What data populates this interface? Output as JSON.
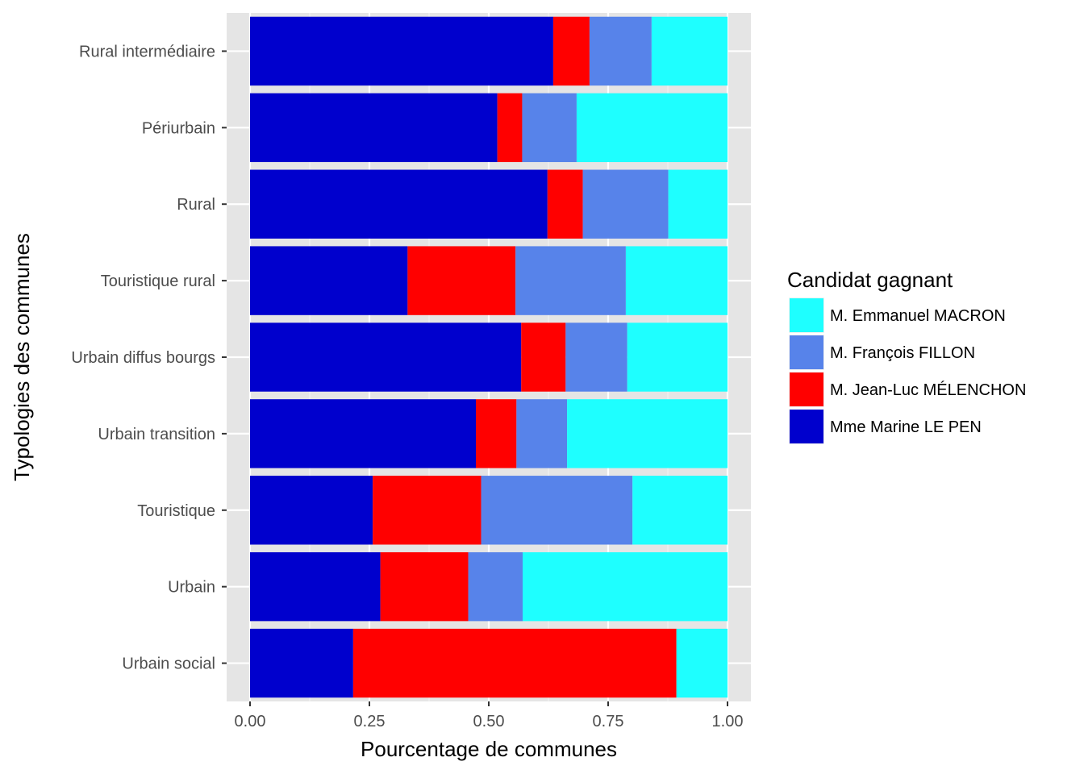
{
  "chart_data": {
    "type": "bar",
    "orientation": "horizontal",
    "stacked": true,
    "xlabel": "Pourcentage de communes",
    "ylabel": "Typologies des communes",
    "xlim": [
      0,
      1
    ],
    "xticks": [
      "0.00",
      "0.25",
      "0.50",
      "0.75",
      "1.00"
    ],
    "grid": true,
    "legend_position": "right",
    "legend_title": "Candidat gagnant",
    "categories": [
      "Rural intermédiaire",
      "Périurbain",
      "Rural",
      "Touristique rural",
      "Urbain diffus bourgs",
      "Urbain transition",
      "Touristique",
      "Urbain",
      "Urbain social"
    ],
    "series": [
      {
        "name": "Mme Marine LE PEN",
        "color": "#0000CD",
        "values": [
          0.635,
          0.518,
          0.623,
          0.33,
          0.568,
          0.473,
          0.257,
          0.273,
          0.216
        ]
      },
      {
        "name": "M. Jean-Luc MÉLENCHON",
        "color": "#FF0000",
        "values": [
          0.076,
          0.052,
          0.074,
          0.226,
          0.093,
          0.085,
          0.227,
          0.184,
          0.677
        ]
      },
      {
        "name": "M. François FILLON",
        "color": "#5783EA",
        "values": [
          0.13,
          0.114,
          0.179,
          0.231,
          0.129,
          0.106,
          0.317,
          0.114,
          0.0
        ]
      },
      {
        "name": "M. Emmanuel MACRON",
        "color": "#1EFFFF",
        "values": [
          0.159,
          0.316,
          0.124,
          0.213,
          0.21,
          0.336,
          0.199,
          0.429,
          0.107
        ]
      }
    ],
    "legend_order": [
      "M. Emmanuel MACRON",
      "M. François FILLON",
      "M. Jean-Luc MÉLENCHON",
      "Mme Marine LE PEN"
    ]
  }
}
